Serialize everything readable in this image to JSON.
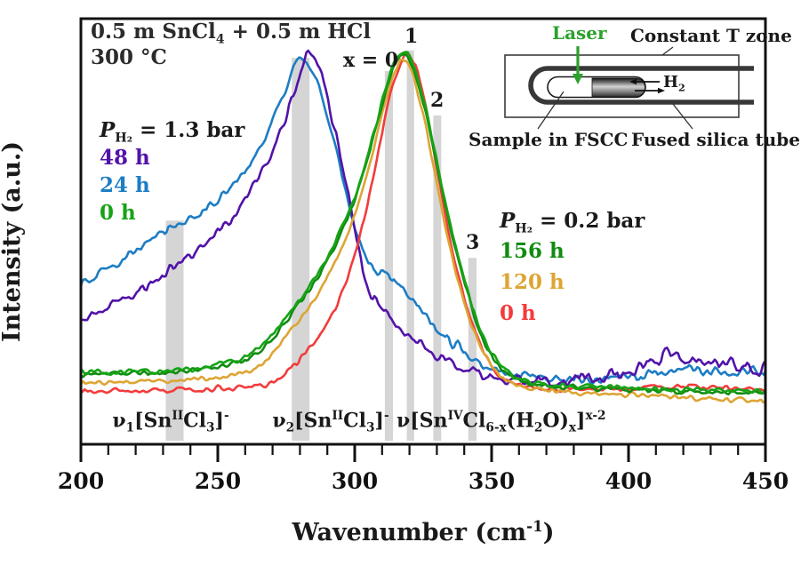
{
  "title": {
    "line1_rich": "0.5 m SnCl_{4} + 0.5 m HCl",
    "line2": "300 °C"
  },
  "axes": {
    "x_label_rich": "Wavenumber (cm^{-1})",
    "y_label": "Intensity (a.u.)",
    "x_ticks": [
      "200",
      "250",
      "300",
      "350",
      "400",
      "450"
    ]
  },
  "legend_1p3bar": {
    "title_rich": "*{P}_{H₂} = 1.3 bar",
    "items": [
      {
        "label": "48 h",
        "color": "#5213a8"
      },
      {
        "label": "24 h",
        "color": "#1d7dc4"
      },
      {
        "label": "0 h",
        "color": "#16a316"
      }
    ]
  },
  "legend_0p2bar": {
    "title_rich": "*{P}_{H₂} = 0.2 bar",
    "items": [
      {
        "label": "156 h",
        "color": "#108c10"
      },
      {
        "label": "120 h",
        "color": "#dda534"
      },
      {
        "label": "0 h",
        "color": "#f23c3c"
      }
    ]
  },
  "peak_labels": [
    {
      "text": "x = 0"
    },
    {
      "text": "1"
    },
    {
      "text": "2"
    },
    {
      "text": "3"
    }
  ],
  "assignments": [
    {
      "rich": "ν_{1}[Sn^{II}Cl_{3}]^{-}"
    },
    {
      "rich": "ν_{2}[Sn^{II}Cl_{3}]^{-}"
    },
    {
      "rich": "ν[Sn^{IV}Cl_{6-x}(H_{2}O)_{x}]^{x-2}"
    }
  ],
  "inset": {
    "labels": {
      "laser": "Laser",
      "zone": "Constant T zone",
      "h2_rich": "H_{2}",
      "sample": "Sample in FSCC",
      "tube": "Fused silica tube"
    },
    "laser_color": "#2ca02c"
  },
  "chart_data": {
    "type": "line",
    "xlabel": "Wavenumber (cm-1)",
    "ylabel": "Intensity (a.u.)",
    "x_range": [
      200,
      450
    ],
    "x_tick_values": [
      200,
      250,
      300,
      350,
      400,
      450
    ],
    "x_minor_step": 10,
    "grid": false,
    "intensity_units": "arbitrary, normalized 0-1 of plot height",
    "bands_note": "gray vertical highlight bands at Raman band positions (cm-1)",
    "bands": [
      {
        "id": "nu1-SnIICl3",
        "from": 231.0,
        "to": 237.5,
        "top": 0.575
      },
      {
        "id": "nu2-SnIICl3",
        "from": 277.0,
        "to": 283.5,
        "top": 0.993
      },
      {
        "id": "x0",
        "from": 311.0,
        "to": 314.0,
        "top": 0.959
      },
      {
        "id": "x1",
        "from": 319.0,
        "to": 321.7,
        "top": 1.012
      },
      {
        "id": "x2",
        "from": 328.7,
        "to": 331.6,
        "top": 0.845
      },
      {
        "id": "x3",
        "from": 341.5,
        "to": 344.5,
        "top": 0.479
      }
    ],
    "series": [
      {
        "name": "24 h (1.3 bar)",
        "color": "#1d7dc4",
        "seed": 22,
        "noise": 7.5,
        "peak_cm1": 280,
        "points": [
          [
            200,
            0.41
          ],
          [
            208,
            0.44
          ],
          [
            216,
            0.475
          ],
          [
            224,
            0.51
          ],
          [
            230,
            0.54
          ],
          [
            236,
            0.565
          ],
          [
            243,
            0.59
          ],
          [
            250,
            0.625
          ],
          [
            257,
            0.675
          ],
          [
            263,
            0.735
          ],
          [
            268,
            0.8
          ],
          [
            272,
            0.865
          ],
          [
            276,
            0.93
          ],
          [
            279,
            0.985
          ],
          [
            281,
            0.995
          ],
          [
            284,
            0.97
          ],
          [
            287,
            0.915
          ],
          [
            290,
            0.845
          ],
          [
            294,
            0.735
          ],
          [
            298,
            0.615
          ],
          [
            302,
            0.52
          ],
          [
            305,
            0.465
          ],
          [
            309,
            0.44
          ],
          [
            313,
            0.425
          ],
          [
            317,
            0.4
          ],
          [
            322,
            0.36
          ],
          [
            327,
            0.315
          ],
          [
            333,
            0.275
          ],
          [
            339,
            0.245
          ],
          [
            345,
            0.215
          ],
          [
            351,
            0.195
          ],
          [
            358,
            0.18
          ],
          [
            368,
            0.17
          ],
          [
            380,
            0.165
          ],
          [
            392,
            0.168
          ],
          [
            403,
            0.175
          ],
          [
            412,
            0.188
          ],
          [
            420,
            0.195
          ],
          [
            428,
            0.19
          ],
          [
            436,
            0.185
          ],
          [
            444,
            0.188
          ],
          [
            450,
            0.182
          ]
        ]
      },
      {
        "name": "48 h (1.3 bar)",
        "color": "#5213a8",
        "seed": 11,
        "noise": 8,
        "noise_hi_from": 365,
        "noise_hi": 12,
        "peak_cm1": 283,
        "points": [
          [
            200,
            0.32
          ],
          [
            208,
            0.345
          ],
          [
            216,
            0.375
          ],
          [
            224,
            0.405
          ],
          [
            231,
            0.44
          ],
          [
            237,
            0.47
          ],
          [
            243,
            0.5
          ],
          [
            250,
            0.545
          ],
          [
            256,
            0.59
          ],
          [
            262,
            0.65
          ],
          [
            267,
            0.715
          ],
          [
            272,
            0.79
          ],
          [
            276,
            0.865
          ],
          [
            279,
            0.93
          ],
          [
            281,
            0.975
          ],
          [
            283,
            1.005
          ],
          [
            285,
            0.995
          ],
          [
            288,
            0.945
          ],
          [
            291,
            0.86
          ],
          [
            294,
            0.77
          ],
          [
            297,
            0.665
          ],
          [
            300,
            0.55
          ],
          [
            303,
            0.45
          ],
          [
            306,
            0.39
          ],
          [
            310,
            0.345
          ],
          [
            315,
            0.305
          ],
          [
            321,
            0.27
          ],
          [
            328,
            0.235
          ],
          [
            336,
            0.205
          ],
          [
            344,
            0.185
          ],
          [
            353,
            0.17
          ],
          [
            363,
            0.16
          ],
          [
            375,
            0.158
          ],
          [
            388,
            0.17
          ],
          [
            398,
            0.185
          ],
          [
            408,
            0.21
          ],
          [
            416,
            0.23
          ],
          [
            422,
            0.22
          ],
          [
            430,
            0.205
          ],
          [
            438,
            0.2
          ],
          [
            444,
            0.195
          ],
          [
            450,
            0.19
          ]
        ]
      },
      {
        "name": "0 h (0.2 bar)",
        "color": "#f23c3c",
        "seed": 33,
        "noise": 4,
        "peak_cm1": 320,
        "points": [
          [
            200,
            0.137
          ],
          [
            215,
            0.138
          ],
          [
            230,
            0.14
          ],
          [
            245,
            0.142
          ],
          [
            258,
            0.147
          ],
          [
            268,
            0.155
          ],
          [
            276,
            0.19
          ],
          [
            282,
            0.235
          ],
          [
            288,
            0.29
          ],
          [
            293,
            0.35
          ],
          [
            298,
            0.44
          ],
          [
            302,
            0.54
          ],
          [
            306,
            0.66
          ],
          [
            310,
            0.8
          ],
          [
            313,
            0.9
          ],
          [
            316,
            0.965
          ],
          [
            318,
            0.995
          ],
          [
            320,
            1.0
          ],
          [
            323,
            0.955
          ],
          [
            326,
            0.865
          ],
          [
            329,
            0.75
          ],
          [
            332,
            0.63
          ],
          [
            335,
            0.52
          ],
          [
            338,
            0.43
          ],
          [
            342,
            0.33
          ],
          [
            346,
            0.255
          ],
          [
            350,
            0.2
          ],
          [
            355,
            0.165
          ],
          [
            362,
            0.148
          ],
          [
            372,
            0.142
          ],
          [
            385,
            0.143
          ],
          [
            400,
            0.145
          ],
          [
            415,
            0.148
          ],
          [
            428,
            0.146
          ],
          [
            440,
            0.143
          ],
          [
            450,
            0.141
          ]
        ]
      },
      {
        "name": "120 h (0.2 bar)",
        "color": "#dda534",
        "seed": 44,
        "noise": 3.6,
        "peak_cm1": 318.5,
        "points": [
          [
            200,
            0.158
          ],
          [
            215,
            0.16
          ],
          [
            230,
            0.163
          ],
          [
            244,
            0.168
          ],
          [
            256,
            0.178
          ],
          [
            265,
            0.2
          ],
          [
            272,
            0.25
          ],
          [
            278,
            0.305
          ],
          [
            284,
            0.36
          ],
          [
            290,
            0.43
          ],
          [
            295,
            0.5
          ],
          [
            300,
            0.59
          ],
          [
            305,
            0.71
          ],
          [
            309,
            0.82
          ],
          [
            313,
            0.925
          ],
          [
            316,
            0.975
          ],
          [
            318,
            0.985
          ],
          [
            321,
            0.955
          ],
          [
            324,
            0.875
          ],
          [
            328,
            0.745
          ],
          [
            331,
            0.63
          ],
          [
            335,
            0.5
          ],
          [
            339,
            0.39
          ],
          [
            343,
            0.3
          ],
          [
            348,
            0.225
          ],
          [
            353,
            0.175
          ],
          [
            360,
            0.15
          ],
          [
            370,
            0.14
          ],
          [
            383,
            0.133
          ],
          [
            398,
            0.128
          ],
          [
            413,
            0.124
          ],
          [
            428,
            0.118
          ],
          [
            440,
            0.114
          ],
          [
            450,
            0.11
          ]
        ]
      },
      {
        "name": "156 h (0.2 bar)",
        "color": "#108c10",
        "seed": 55,
        "noise": 4,
        "peak_cm1": 318,
        "points": [
          [
            200,
            0.178
          ],
          [
            214,
            0.18
          ],
          [
            228,
            0.184
          ],
          [
            242,
            0.19
          ],
          [
            254,
            0.205
          ],
          [
            263,
            0.228
          ],
          [
            270,
            0.272
          ],
          [
            276,
            0.325
          ],
          [
            282,
            0.382
          ],
          [
            288,
            0.448
          ],
          [
            293,
            0.515
          ],
          [
            298,
            0.592
          ],
          [
            303,
            0.69
          ],
          [
            307,
            0.795
          ],
          [
            311,
            0.9
          ],
          [
            315,
            0.98
          ],
          [
            318,
            1.0
          ],
          [
            321,
            0.975
          ],
          [
            325,
            0.88
          ],
          [
            329,
            0.75
          ],
          [
            333,
            0.615
          ],
          [
            337,
            0.492
          ],
          [
            341,
            0.392
          ],
          [
            345,
            0.302
          ],
          [
            350,
            0.228
          ],
          [
            356,
            0.18
          ],
          [
            364,
            0.156
          ],
          [
            375,
            0.148
          ],
          [
            390,
            0.143
          ],
          [
            405,
            0.139
          ],
          [
            420,
            0.136
          ],
          [
            435,
            0.133
          ],
          [
            450,
            0.131
          ]
        ]
      },
      {
        "name": "0 h (1.3 bar)",
        "color": "#16a316",
        "seed": 66,
        "noise": 4.2,
        "peak_cm1": 319,
        "points": [
          [
            200,
            0.183
          ],
          [
            214,
            0.185
          ],
          [
            228,
            0.188
          ],
          [
            242,
            0.195
          ],
          [
            254,
            0.21
          ],
          [
            263,
            0.235
          ],
          [
            270,
            0.28
          ],
          [
            276,
            0.335
          ],
          [
            282,
            0.39
          ],
          [
            288,
            0.455
          ],
          [
            293,
            0.525
          ],
          [
            298,
            0.6
          ],
          [
            303,
            0.7
          ],
          [
            307,
            0.8
          ],
          [
            311,
            0.91
          ],
          [
            315,
            0.985
          ],
          [
            318,
            1.005
          ],
          [
            321,
            0.985
          ],
          [
            325,
            0.89
          ],
          [
            329,
            0.76
          ],
          [
            333,
            0.625
          ],
          [
            337,
            0.5
          ],
          [
            341,
            0.4
          ],
          [
            345,
            0.31
          ],
          [
            350,
            0.235
          ],
          [
            356,
            0.185
          ],
          [
            364,
            0.16
          ],
          [
            375,
            0.152
          ],
          [
            390,
            0.147
          ],
          [
            405,
            0.143
          ],
          [
            420,
            0.14
          ],
          [
            435,
            0.137
          ],
          [
            450,
            0.135
          ]
        ]
      }
    ]
  }
}
